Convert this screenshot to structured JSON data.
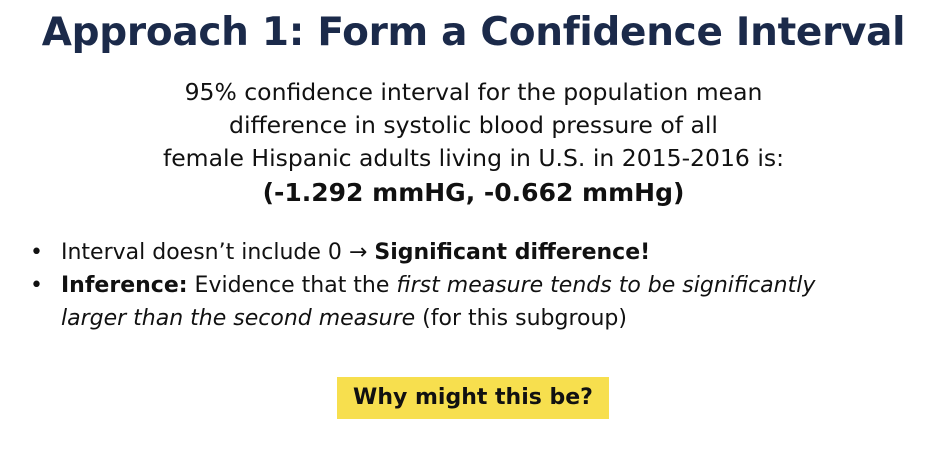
{
  "slide": {
    "title": "Approach 1: Form a Confidence Interval",
    "ci_statement": {
      "line1": "95% confidence interval for the population mean",
      "line2": "difference in systolic blood pressure of all",
      "line3": "female Hispanic adults living in U.S. in 2015-2016 is:",
      "interval": "(-1.292 mmHG, -0.662 mmHg)"
    },
    "bullets": [
      {
        "text": "Interval doesn’t include 0 → ",
        "emphasis": "Significant difference!"
      },
      {
        "label": "Inference:",
        "text_a": " Evidence that the ",
        "italic_line1": "first measure tends to be significantly",
        "italic_line2": "larger than the second measure",
        "text_b": " (for this subgroup)"
      }
    ],
    "bullet_symbol": "•",
    "callout": "Why might this be?"
  },
  "colors": {
    "title": "#1b2a4a",
    "text": "#111111",
    "callout_bg": "#f7df4e"
  }
}
